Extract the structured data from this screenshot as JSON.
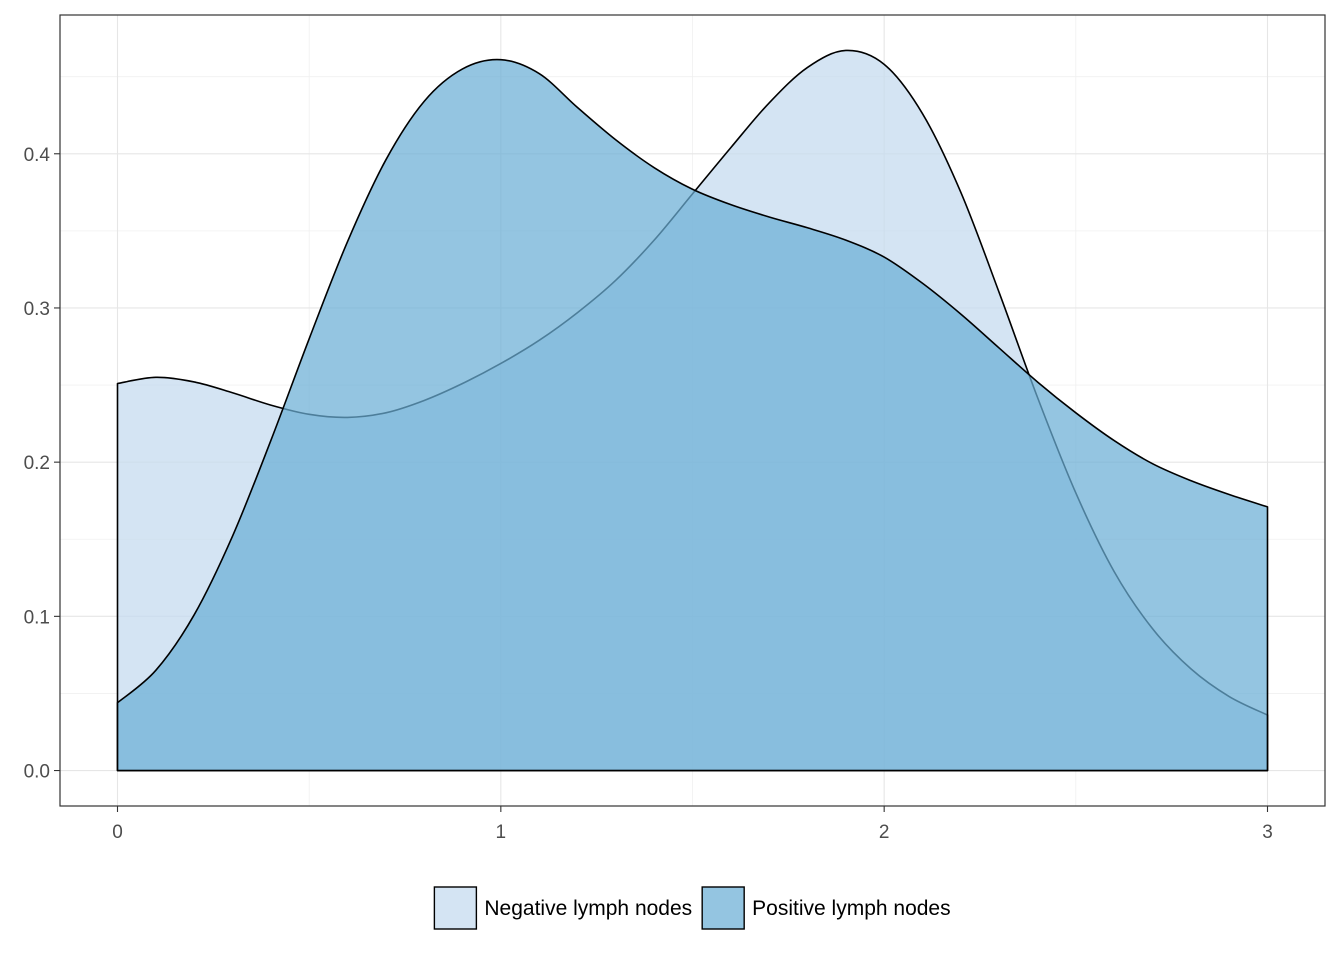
{
  "chart_data": {
    "type": "area",
    "subtype": "density",
    "title": "",
    "xlabel": "",
    "ylabel": "",
    "xlim": [
      -0.15,
      3.15
    ],
    "ylim": [
      -0.023,
      0.49
    ],
    "x_ticks": [
      0,
      1,
      2,
      3
    ],
    "x_tick_labels": [
      "0",
      "1",
      "2",
      "3"
    ],
    "y_ticks": [
      0.0,
      0.1,
      0.2,
      0.3,
      0.4
    ],
    "y_tick_labels": [
      "0.0",
      "0.1",
      "0.2",
      "0.3",
      "0.4"
    ],
    "grid": true,
    "legend_position": "bottom",
    "series": [
      {
        "name": "Negative lymph nodes",
        "color": "#c6dbef",
        "x": [
          0,
          0.1,
          0.2,
          0.3,
          0.4,
          0.5,
          0.6,
          0.7,
          0.8,
          0.9,
          1.0,
          1.1,
          1.2,
          1.3,
          1.4,
          1.5,
          1.6,
          1.7,
          1.8,
          1.9,
          2.0,
          2.1,
          2.2,
          2.3,
          2.4,
          2.5,
          2.6,
          2.7,
          2.8,
          2.9,
          3.0
        ],
        "values": [
          0.251,
          0.255,
          0.252,
          0.245,
          0.237,
          0.231,
          0.229,
          0.232,
          0.24,
          0.251,
          0.264,
          0.279,
          0.297,
          0.318,
          0.344,
          0.374,
          0.404,
          0.433,
          0.456,
          0.467,
          0.458,
          0.426,
          0.375,
          0.31,
          0.242,
          0.18,
          0.129,
          0.092,
          0.066,
          0.048,
          0.036
        ]
      },
      {
        "name": "Positive lymph nodes",
        "color": "#6baed6",
        "x": [
          0,
          0.1,
          0.2,
          0.3,
          0.4,
          0.5,
          0.6,
          0.7,
          0.8,
          0.9,
          1.0,
          1.1,
          1.2,
          1.3,
          1.4,
          1.5,
          1.6,
          1.7,
          1.8,
          1.9,
          2.0,
          2.1,
          2.2,
          2.3,
          2.4,
          2.5,
          2.6,
          2.7,
          2.8,
          2.9,
          3.0
        ],
        "values": [
          0.044,
          0.065,
          0.101,
          0.152,
          0.214,
          0.28,
          0.343,
          0.396,
          0.434,
          0.455,
          0.461,
          0.452,
          0.43,
          0.409,
          0.391,
          0.377,
          0.367,
          0.359,
          0.352,
          0.344,
          0.333,
          0.316,
          0.296,
          0.274,
          0.252,
          0.232,
          0.214,
          0.199,
          0.188,
          0.179,
          0.171
        ]
      }
    ]
  }
}
